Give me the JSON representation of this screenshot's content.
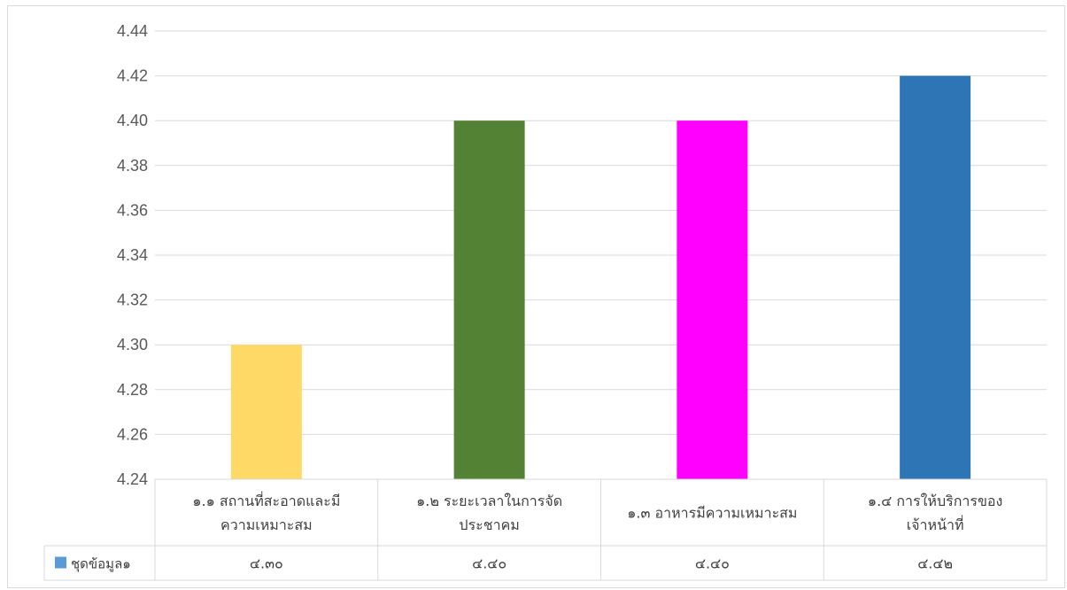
{
  "chart_data": {
    "type": "bar",
    "title": "",
    "xlabel": "",
    "ylabel": "",
    "ylim": [
      4.24,
      4.44
    ],
    "ytick_step": 0.02,
    "grid": true,
    "categories": [
      [
        "๑.๑ สถานที่สะอาดและมี",
        "ความเหมาะสม"
      ],
      [
        "๑.๒ ระยะเวลาในการจัด",
        "ประชาคม"
      ],
      [
        "๑.๓ อาหารมีความเหมาะสม"
      ],
      [
        "๑.๔  การให้บริการของ",
        "เจ้าหน้าที่"
      ]
    ],
    "series": [
      {
        "name": "ชุดข้อมูล๑",
        "values": [
          4.3,
          4.4,
          4.4,
          4.42
        ],
        "value_labels": [
          "๔.๓๐",
          "๔.๔๐",
          "๔.๔๐",
          "๔.๔๒"
        ],
        "colors": [
          "#ffd966",
          "#548235",
          "#ff00ff",
          "#2e75b6"
        ],
        "legend_color": "#5b9bd5"
      }
    ],
    "legend": "data-table"
  }
}
